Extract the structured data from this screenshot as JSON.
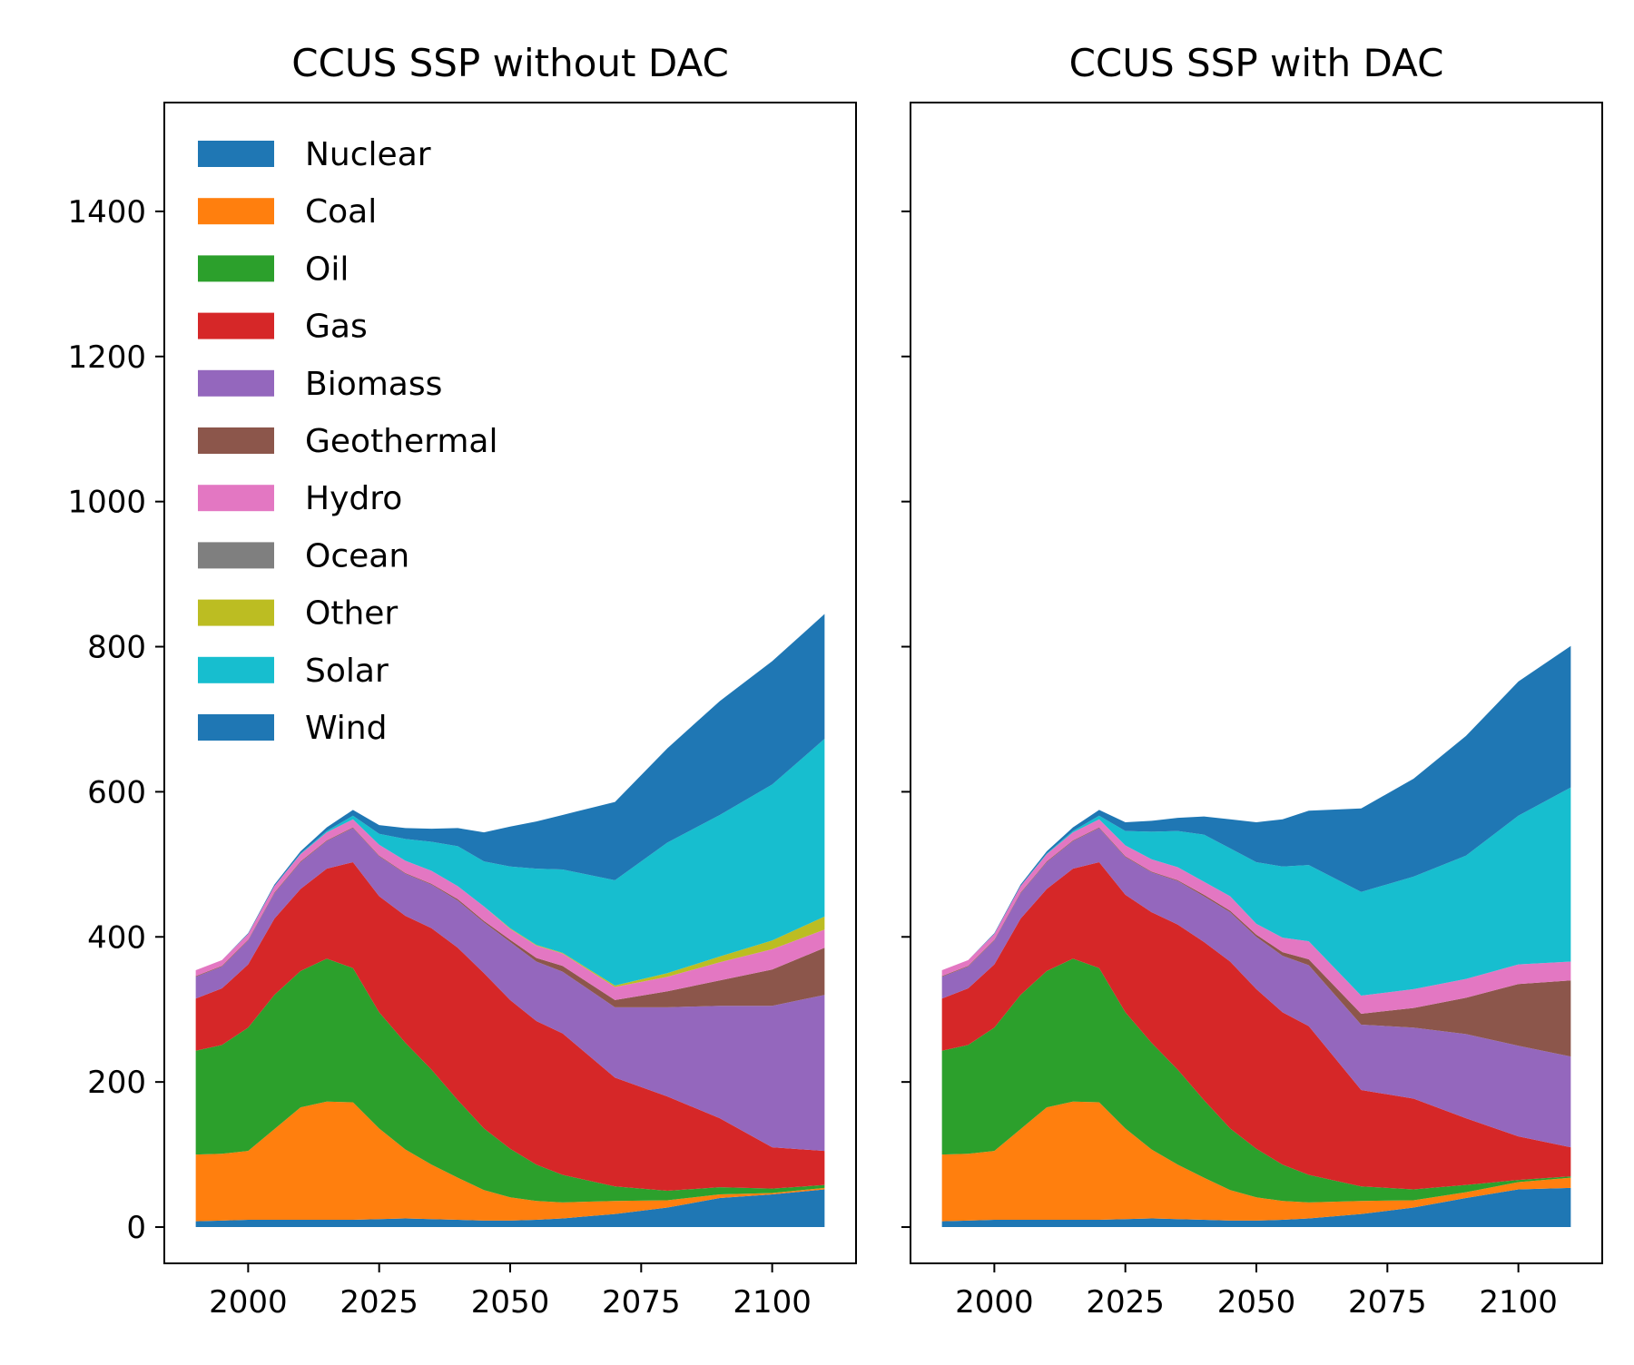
{
  "chart_data": [
    {
      "type": "area",
      "stacked": true,
      "title": "CCUS SSP without DAC",
      "xlabel": "",
      "ylabel": "",
      "xlim": [
        1984,
        2116
      ],
      "ylim": [
        -50,
        1550
      ],
      "xticks": [
        2000,
        2025,
        2050,
        2075,
        2100
      ],
      "yticks": [
        0,
        200,
        400,
        600,
        800,
        1000,
        1200,
        1400
      ],
      "legend": "top-left",
      "x": [
        1990,
        1995,
        2000,
        2005,
        2010,
        2015,
        2020,
        2025,
        2030,
        2035,
        2040,
        2045,
        2050,
        2055,
        2060,
        2070,
        2080,
        2090,
        2100,
        2110
      ],
      "series": [
        {
          "name": "Nuclear",
          "color": "#1f77b4",
          "values": [
            8,
            9,
            10,
            10,
            10,
            10,
            10,
            11,
            12,
            11,
            10,
            9,
            9,
            10,
            12,
            18,
            27,
            40,
            45,
            52
          ]
        },
        {
          "name": "Coal",
          "color": "#ff7f0e",
          "values": [
            92,
            92,
            95,
            125,
            155,
            163,
            162,
            125,
            95,
            75,
            58,
            42,
            32,
            26,
            22,
            18,
            10,
            5,
            2,
            2
          ]
        },
        {
          "name": "Oil",
          "color": "#2ca02c",
          "values": [
            143,
            150,
            170,
            185,
            188,
            197,
            185,
            160,
            147,
            131,
            107,
            85,
            67,
            50,
            38,
            20,
            13,
            10,
            6,
            4
          ]
        },
        {
          "name": "Gas",
          "color": "#d62728",
          "values": [
            72,
            78,
            87,
            105,
            113,
            124,
            146,
            160,
            175,
            195,
            210,
            214,
            205,
            198,
            195,
            150,
            130,
            95,
            57,
            47
          ]
        },
        {
          "name": "Biomass",
          "color": "#9467bd",
          "values": [
            30,
            30,
            33,
            35,
            37,
            38,
            47,
            55,
            58,
            60,
            65,
            70,
            80,
            82,
            85,
            97,
            123,
            155,
            195,
            215
          ]
        },
        {
          "name": "Geothermal",
          "color": "#8c564b",
          "values": [
            1,
            1,
            1,
            1,
            1,
            1,
            1,
            1,
            1,
            1,
            2,
            2,
            3,
            5,
            8,
            10,
            22,
            35,
            50,
            65
          ]
        },
        {
          "name": "Hydro",
          "color": "#e377c2",
          "values": [
            8,
            8,
            8,
            9,
            10,
            11,
            11,
            15,
            17,
            18,
            18,
            20,
            15,
            17,
            17,
            18,
            20,
            25,
            28,
            25
          ]
        },
        {
          "name": "Ocean",
          "color": "#7f7f7f",
          "values": [
            0,
            0,
            0,
            0,
            0,
            0,
            0,
            0,
            0,
            0,
            0,
            0,
            0,
            0,
            0,
            0,
            0,
            0,
            0,
            0
          ]
        },
        {
          "name": "Other",
          "color": "#bcbd22",
          "values": [
            0,
            0,
            0,
            0,
            0,
            0,
            0,
            0,
            0,
            0,
            0,
            0,
            1,
            1,
            1,
            2,
            5,
            8,
            12,
            18
          ]
        },
        {
          "name": "Solar",
          "color": "#17becf",
          "values": [
            0,
            0,
            0,
            0,
            1,
            2,
            5,
            15,
            30,
            40,
            55,
            62,
            85,
            105,
            115,
            145,
            180,
            195,
            215,
            245
          ]
        },
        {
          "name": "Wind",
          "color": "#1f77b4",
          "values": [
            0,
            0,
            1,
            2,
            3,
            5,
            8,
            12,
            15,
            18,
            25,
            40,
            55,
            65,
            75,
            108,
            130,
            157,
            170,
            172
          ]
        }
      ]
    },
    {
      "type": "area",
      "stacked": true,
      "title": "CCUS SSP with DAC",
      "xlabel": "",
      "ylabel": "",
      "xlim": [
        1984,
        2116
      ],
      "ylim": [
        -50,
        1550
      ],
      "xticks": [
        2000,
        2025,
        2050,
        2075,
        2100
      ],
      "yticks": [
        0,
        200,
        400,
        600,
        800,
        1000,
        1200,
        1400
      ],
      "x": [
        1990,
        1995,
        2000,
        2005,
        2010,
        2015,
        2020,
        2025,
        2030,
        2035,
        2040,
        2045,
        2050,
        2055,
        2060,
        2070,
        2080,
        2090,
        2100,
        2110
      ],
      "series": [
        {
          "name": "Nuclear",
          "color": "#1f77b4",
          "values": [
            8,
            9,
            10,
            10,
            10,
            10,
            10,
            11,
            12,
            11,
            10,
            9,
            9,
            10,
            12,
            18,
            27,
            40,
            52,
            54
          ]
        },
        {
          "name": "Coal",
          "color": "#ff7f0e",
          "values": [
            92,
            92,
            95,
            125,
            155,
            163,
            162,
            125,
            95,
            75,
            58,
            42,
            32,
            26,
            22,
            18,
            10,
            8,
            10,
            14
          ]
        },
        {
          "name": "Oil",
          "color": "#2ca02c",
          "values": [
            143,
            150,
            170,
            185,
            188,
            197,
            185,
            160,
            147,
            131,
            107,
            85,
            67,
            50,
            38,
            20,
            15,
            10,
            3,
            2
          ]
        },
        {
          "name": "Gas",
          "color": "#d62728",
          "values": [
            72,
            78,
            87,
            105,
            113,
            124,
            146,
            162,
            180,
            200,
            218,
            230,
            220,
            210,
            205,
            133,
            125,
            92,
            60,
            40
          ]
        },
        {
          "name": "Biomass",
          "color": "#9467bd",
          "values": [
            30,
            30,
            33,
            35,
            37,
            38,
            47,
            52,
            55,
            60,
            63,
            68,
            72,
            78,
            84,
            90,
            98,
            116,
            125,
            125
          ]
        },
        {
          "name": "Geothermal",
          "color": "#8c564b",
          "values": [
            1,
            1,
            1,
            1,
            1,
            1,
            1,
            1,
            1,
            1,
            2,
            2,
            3,
            5,
            8,
            15,
            27,
            50,
            85,
            105
          ]
        },
        {
          "name": "Hydro",
          "color": "#e377c2",
          "values": [
            8,
            8,
            8,
            9,
            10,
            11,
            11,
            15,
            17,
            18,
            18,
            20,
            15,
            20,
            25,
            25,
            26,
            26,
            27,
            26
          ]
        },
        {
          "name": "Ocean",
          "color": "#7f7f7f",
          "values": [
            0,
            0,
            0,
            0,
            0,
            0,
            0,
            0,
            0,
            0,
            0,
            0,
            0,
            0,
            0,
            0,
            0,
            0,
            0,
            0
          ]
        },
        {
          "name": "Other",
          "color": "#bcbd22",
          "values": [
            0,
            0,
            0,
            0,
            0,
            0,
            0,
            0,
            0,
            0,
            0,
            0,
            0,
            0,
            0,
            0,
            0,
            0,
            0,
            0
          ]
        },
        {
          "name": "Solar",
          "color": "#17becf",
          "values": [
            0,
            0,
            0,
            0,
            1,
            2,
            5,
            20,
            38,
            50,
            65,
            66,
            85,
            98,
            105,
            143,
            155,
            170,
            205,
            240
          ]
        },
        {
          "name": "Wind",
          "color": "#1f77b4",
          "values": [
            0,
            0,
            1,
            2,
            3,
            5,
            8,
            12,
            15,
            18,
            25,
            40,
            55,
            65,
            75,
            115,
            135,
            165,
            185,
            195
          ]
        }
      ]
    }
  ]
}
